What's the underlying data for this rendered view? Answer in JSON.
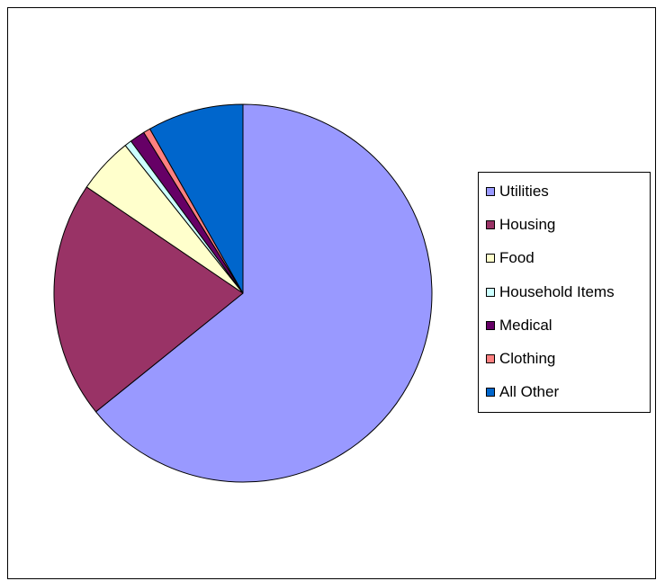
{
  "chart_data": {
    "type": "pie",
    "title": "",
    "legend_position": "right",
    "slices": [
      {
        "label": "Utilities",
        "value": 64.2,
        "color": "#9999FF"
      },
      {
        "label": "Housing",
        "value": 20.3,
        "color": "#993366"
      },
      {
        "label": "Food",
        "value": 4.8,
        "color": "#FFFFCC"
      },
      {
        "label": "Household Items",
        "value": 0.6,
        "color": "#CCFFFF"
      },
      {
        "label": "Medical",
        "value": 1.3,
        "color": "#660066"
      },
      {
        "label": "Clothing",
        "value": 0.6,
        "color": "#FF8080"
      },
      {
        "label": "All Other",
        "value": 8.2,
        "color": "#0066CC"
      }
    ]
  }
}
